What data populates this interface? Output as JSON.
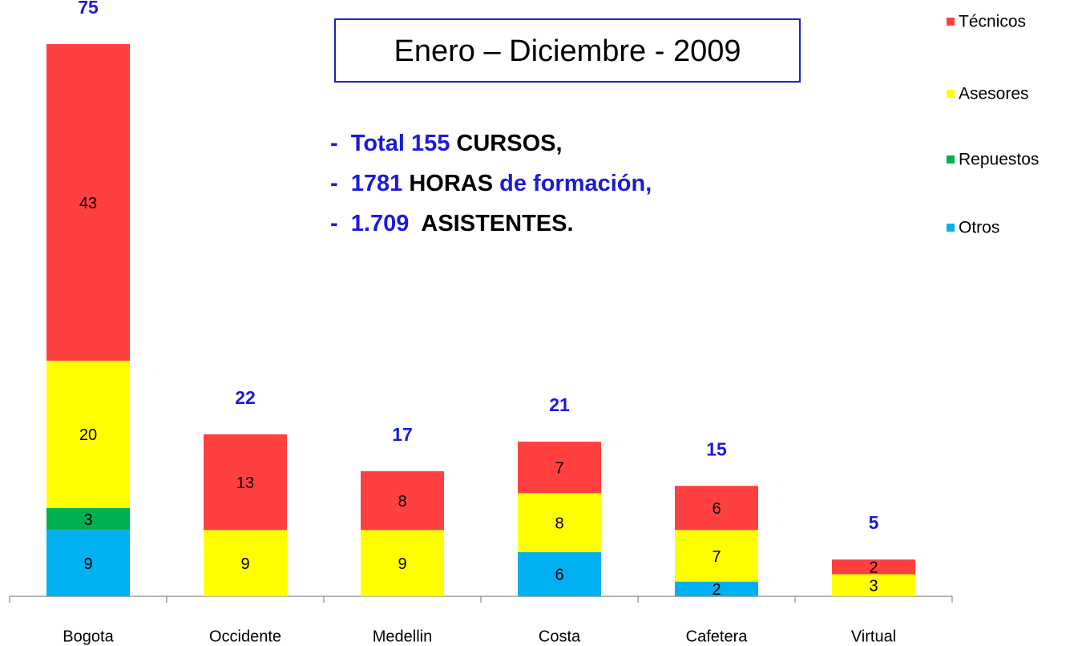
{
  "chart_data": {
    "type": "stacked_bar",
    "title": "Enero – Diciembre - 2009",
    "annotations": [
      [
        {
          "text": "-  Total 155",
          "color": "#1a1adb"
        },
        {
          "text": " CURSOS,",
          "color": "#000000"
        }
      ],
      [
        {
          "text": "-  1781",
          "color": "#1a1adb"
        },
        {
          "text": " HORAS",
          "color": "#000000"
        },
        {
          "text": " de formación,",
          "color": "#1a1adb"
        }
      ],
      [
        {
          "text": "-  1.709",
          "color": "#1a1adb"
        },
        {
          "text": "  ASISTENTES.",
          "color": "#000000"
        }
      ]
    ],
    "categories": [
      "Bogota",
      "Occidente",
      "Medellin",
      "Costa",
      "Cafetera",
      "Virtual"
    ],
    "series": [
      {
        "name": "Otros",
        "color": "#00b0f0",
        "values": [
          9,
          null,
          null,
          6,
          2,
          null
        ]
      },
      {
        "name": "Repuestos",
        "color": "#00b050",
        "values": [
          3,
          null,
          null,
          null,
          null,
          null
        ]
      },
      {
        "name": "Asesores",
        "color": "#ffff00",
        "values": [
          20,
          9,
          9,
          8,
          7,
          3
        ]
      },
      {
        "name": "Técnicos",
        "color": "#ff4040",
        "values": [
          43,
          13,
          8,
          7,
          6,
          2
        ]
      }
    ],
    "totals": [
      75,
      22,
      17,
      21,
      15,
      5
    ],
    "totals_color": "#1a1adb",
    "ylim": [
      0,
      75
    ],
    "legend": "right"
  }
}
